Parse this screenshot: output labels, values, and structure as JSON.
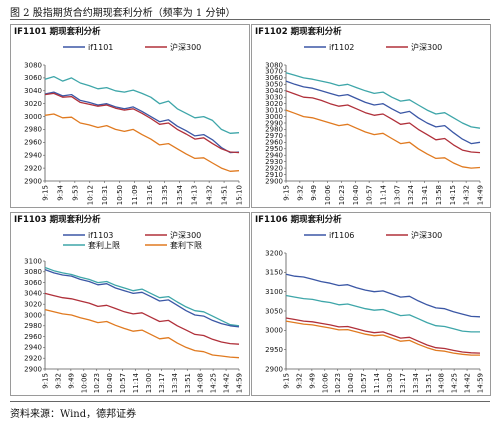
{
  "figure": {
    "title": "图 2 股指期货合约期现套利分析（频率为 1 分钟）",
    "source": "资料来源：Wind，德邦证券"
  },
  "colors": {
    "future": "#3b57a5",
    "index": "#b0303a",
    "upper": "#3ea6a9",
    "lower": "#e07a20"
  },
  "chart_data": [
    {
      "id": "p1",
      "type": "line",
      "title": "IF1101 期现套利分析",
      "xlabel": "",
      "ylabel": "",
      "ylim": [
        2900,
        3080
      ],
      "yticks": [
        2900,
        2920,
        2940,
        2960,
        2980,
        3000,
        3020,
        3040,
        3060,
        3080
      ],
      "x_ticks": [
        "9:15",
        "9:34",
        "9:53",
        "10:12",
        "10:31",
        "10:50",
        "11:09",
        "13:16",
        "13:35",
        "13:54",
        "14:13",
        "14:32",
        "14:51",
        "15:10"
      ],
      "legend": [
        {
          "name": "if1101",
          "color_key": "future"
        },
        {
          "name": "沪深300",
          "color_key": "index"
        }
      ],
      "series": [
        {
          "name": "套利上限",
          "color_key": "upper",
          "values": [
            3058,
            3062,
            3055,
            3060,
            3052,
            3048,
            3043,
            3045,
            3040,
            3038,
            3041,
            3036,
            3030,
            3020,
            3024,
            3012,
            3005,
            2998,
            3000,
            2994,
            2980,
            2974,
            2975
          ]
        },
        {
          "name": "if1101",
          "color_key": "future",
          "values": [
            3035,
            3038,
            3032,
            3034,
            3025,
            3022,
            3018,
            3020,
            3015,
            3012,
            3015,
            3008,
            3000,
            2992,
            2995,
            2985,
            2978,
            2970,
            2972,
            2964,
            2952,
            2944,
            2945
          ]
        },
        {
          "name": "沪深300",
          "color_key": "index",
          "values": [
            3034,
            3036,
            3030,
            3031,
            3022,
            3019,
            3016,
            3018,
            3013,
            3010,
            3012,
            3005,
            2997,
            2988,
            2990,
            2980,
            2973,
            2965,
            2967,
            2958,
            2950,
            2945,
            2944
          ]
        },
        {
          "name": "套利下限",
          "color_key": "lower",
          "values": [
            3002,
            3004,
            2998,
            2999,
            2990,
            2987,
            2983,
            2986,
            2980,
            2977,
            2980,
            2972,
            2965,
            2956,
            2958,
            2950,
            2942,
            2935,
            2936,
            2928,
            2920,
            2915,
            2916
          ]
        }
      ]
    },
    {
      "id": "p2",
      "type": "line",
      "title": "IF1102 期现套利分析",
      "xlabel": "",
      "ylabel": "",
      "ylim": [
        2900,
        3080
      ],
      "yticks": [
        2900,
        2910,
        2920,
        2930,
        2940,
        2950,
        2960,
        2970,
        2980,
        2990,
        3000,
        3010,
        3020,
        3030,
        3040,
        3050,
        3060,
        3070,
        3080
      ],
      "x_ticks": [
        "9:15",
        "9:32",
        "9:49",
        "10:06",
        "10:23",
        "10:40",
        "10:57",
        "11:14",
        "13:07",
        "13:24",
        "13:41",
        "13:58",
        "14:15",
        "14:32",
        "14:49"
      ],
      "legend": [
        {
          "name": "if1102",
          "color_key": "future"
        },
        {
          "name": "沪深300",
          "color_key": "index"
        }
      ],
      "series": [
        {
          "name": "套利上限",
          "color_key": "upper",
          "values": [
            3068,
            3064,
            3060,
            3058,
            3055,
            3052,
            3048,
            3050,
            3045,
            3040,
            3036,
            3038,
            3030,
            3024,
            3026,
            3018,
            3010,
            3004,
            3006,
            2998,
            2990,
            2984,
            2982
          ]
        },
        {
          "name": "if1102",
          "color_key": "future",
          "values": [
            3055,
            3050,
            3046,
            3044,
            3040,
            3036,
            3032,
            3034,
            3028,
            3022,
            3018,
            3020,
            3012,
            3005,
            3008,
            2998,
            2990,
            2984,
            2986,
            2975,
            2965,
            2958,
            2960
          ]
        },
        {
          "name": "沪深300",
          "color_key": "index",
          "values": [
            3040,
            3035,
            3030,
            3029,
            3025,
            3020,
            3016,
            3018,
            3012,
            3006,
            3002,
            3004,
            2996,
            2988,
            2990,
            2980,
            2972,
            2964,
            2966,
            2956,
            2948,
            2945,
            2944
          ]
        },
        {
          "name": "套利下限",
          "color_key": "lower",
          "values": [
            3010,
            3005,
            3000,
            2998,
            2994,
            2990,
            2986,
            2988,
            2982,
            2976,
            2972,
            2974,
            2966,
            2958,
            2960,
            2950,
            2942,
            2935,
            2936,
            2928,
            2922,
            2920,
            2921
          ]
        }
      ]
    },
    {
      "id": "p3",
      "type": "line",
      "title": "IF1103 期现套利分析",
      "xlabel": "",
      "ylabel": "",
      "ylim": [
        2900,
        3100
      ],
      "yticks": [
        2900,
        2920,
        2940,
        2960,
        2980,
        3000,
        3020,
        3040,
        3060,
        3080,
        3100
      ],
      "x_ticks": [
        "9:15",
        "9:32",
        "9:49",
        "10:06",
        "10:23",
        "10:40",
        "10:57",
        "11:14",
        "13:00",
        "13:17",
        "13:34",
        "13:51",
        "14:08",
        "14:25",
        "14:42",
        "14:59"
      ],
      "legend": [
        {
          "name": "if1103",
          "color_key": "future"
        },
        {
          "name": "沪深300",
          "color_key": "index"
        },
        {
          "name": "套利上限",
          "color_key": "upper"
        },
        {
          "name": "套利下限",
          "color_key": "lower"
        }
      ],
      "series": [
        {
          "name": "套利上限",
          "color_key": "upper",
          "values": [
            3088,
            3082,
            3078,
            3075,
            3070,
            3066,
            3060,
            3062,
            3055,
            3050,
            3045,
            3048,
            3040,
            3032,
            3034,
            3024,
            3015,
            3008,
            3006,
            2998,
            2990,
            2982,
            2980
          ]
        },
        {
          "name": "if1103",
          "color_key": "future",
          "values": [
            3084,
            3078,
            3074,
            3072,
            3066,
            3062,
            3056,
            3058,
            3050,
            3045,
            3040,
            3042,
            3034,
            3026,
            3028,
            3018,
            3008,
            3000,
            2998,
            2990,
            2984,
            2980,
            2978
          ]
        },
        {
          "name": "沪深300",
          "color_key": "index",
          "values": [
            3040,
            3036,
            3032,
            3030,
            3026,
            3022,
            3016,
            3018,
            3012,
            3006,
            3002,
            3004,
            2996,
            2988,
            2990,
            2980,
            2972,
            2964,
            2962,
            2955,
            2950,
            2947,
            2946
          ]
        },
        {
          "name": "套利下限",
          "color_key": "lower",
          "values": [
            3010,
            3006,
            3002,
            3000,
            2995,
            2991,
            2986,
            2988,
            2981,
            2975,
            2970,
            2972,
            2964,
            2956,
            2958,
            2948,
            2940,
            2934,
            2932,
            2926,
            2924,
            2922,
            2921
          ]
        }
      ]
    },
    {
      "id": "p4",
      "type": "line",
      "title": "IF1106 期现套利分析",
      "xlabel": "",
      "ylabel": "",
      "ylim": [
        2900,
        3200
      ],
      "yticks": [
        2900,
        2950,
        3000,
        3050,
        3100,
        3150,
        3200
      ],
      "x_ticks": [
        "9:15",
        "9:32",
        "9:49",
        "10:06",
        "10:23",
        "10:40",
        "10:57",
        "11:14",
        "13:00",
        "13:17",
        "13:34",
        "13:51",
        "14:08",
        "14:25",
        "14:42",
        "14:59"
      ],
      "legend": [
        {
          "name": "if1106",
          "color_key": "future"
        },
        {
          "name": "沪深300",
          "color_key": "index"
        }
      ],
      "series": [
        {
          "name": "if1106",
          "color_key": "future",
          "values": [
            3145,
            3140,
            3138,
            3132,
            3126,
            3122,
            3116,
            3118,
            3110,
            3104,
            3100,
            3102,
            3094,
            3086,
            3088,
            3076,
            3066,
            3058,
            3056,
            3048,
            3042,
            3036,
            3035
          ]
        },
        {
          "name": "套利上限",
          "color_key": "upper",
          "values": [
            3090,
            3086,
            3082,
            3080,
            3075,
            3072,
            3066,
            3068,
            3062,
            3056,
            3052,
            3054,
            3046,
            3038,
            3040,
            3030,
            3020,
            3012,
            3010,
            3004,
            2998,
            2996,
            2996
          ]
        },
        {
          "name": "沪深300",
          "color_key": "index",
          "values": [
            3032,
            3028,
            3024,
            3022,
            3018,
            3014,
            3009,
            3010,
            3004,
            2998,
            2994,
            2996,
            2988,
            2980,
            2982,
            2972,
            2962,
            2955,
            2953,
            2948,
            2944,
            2942,
            2941
          ]
        },
        {
          "name": "套利下限",
          "color_key": "lower",
          "values": [
            3024,
            3020,
            3016,
            3014,
            3010,
            3006,
            3001,
            3002,
            2996,
            2990,
            2986,
            2988,
            2980,
            2972,
            2974,
            2964,
            2955,
            2948,
            2946,
            2941,
            2938,
            2936,
            2936
          ]
        }
      ]
    }
  ]
}
